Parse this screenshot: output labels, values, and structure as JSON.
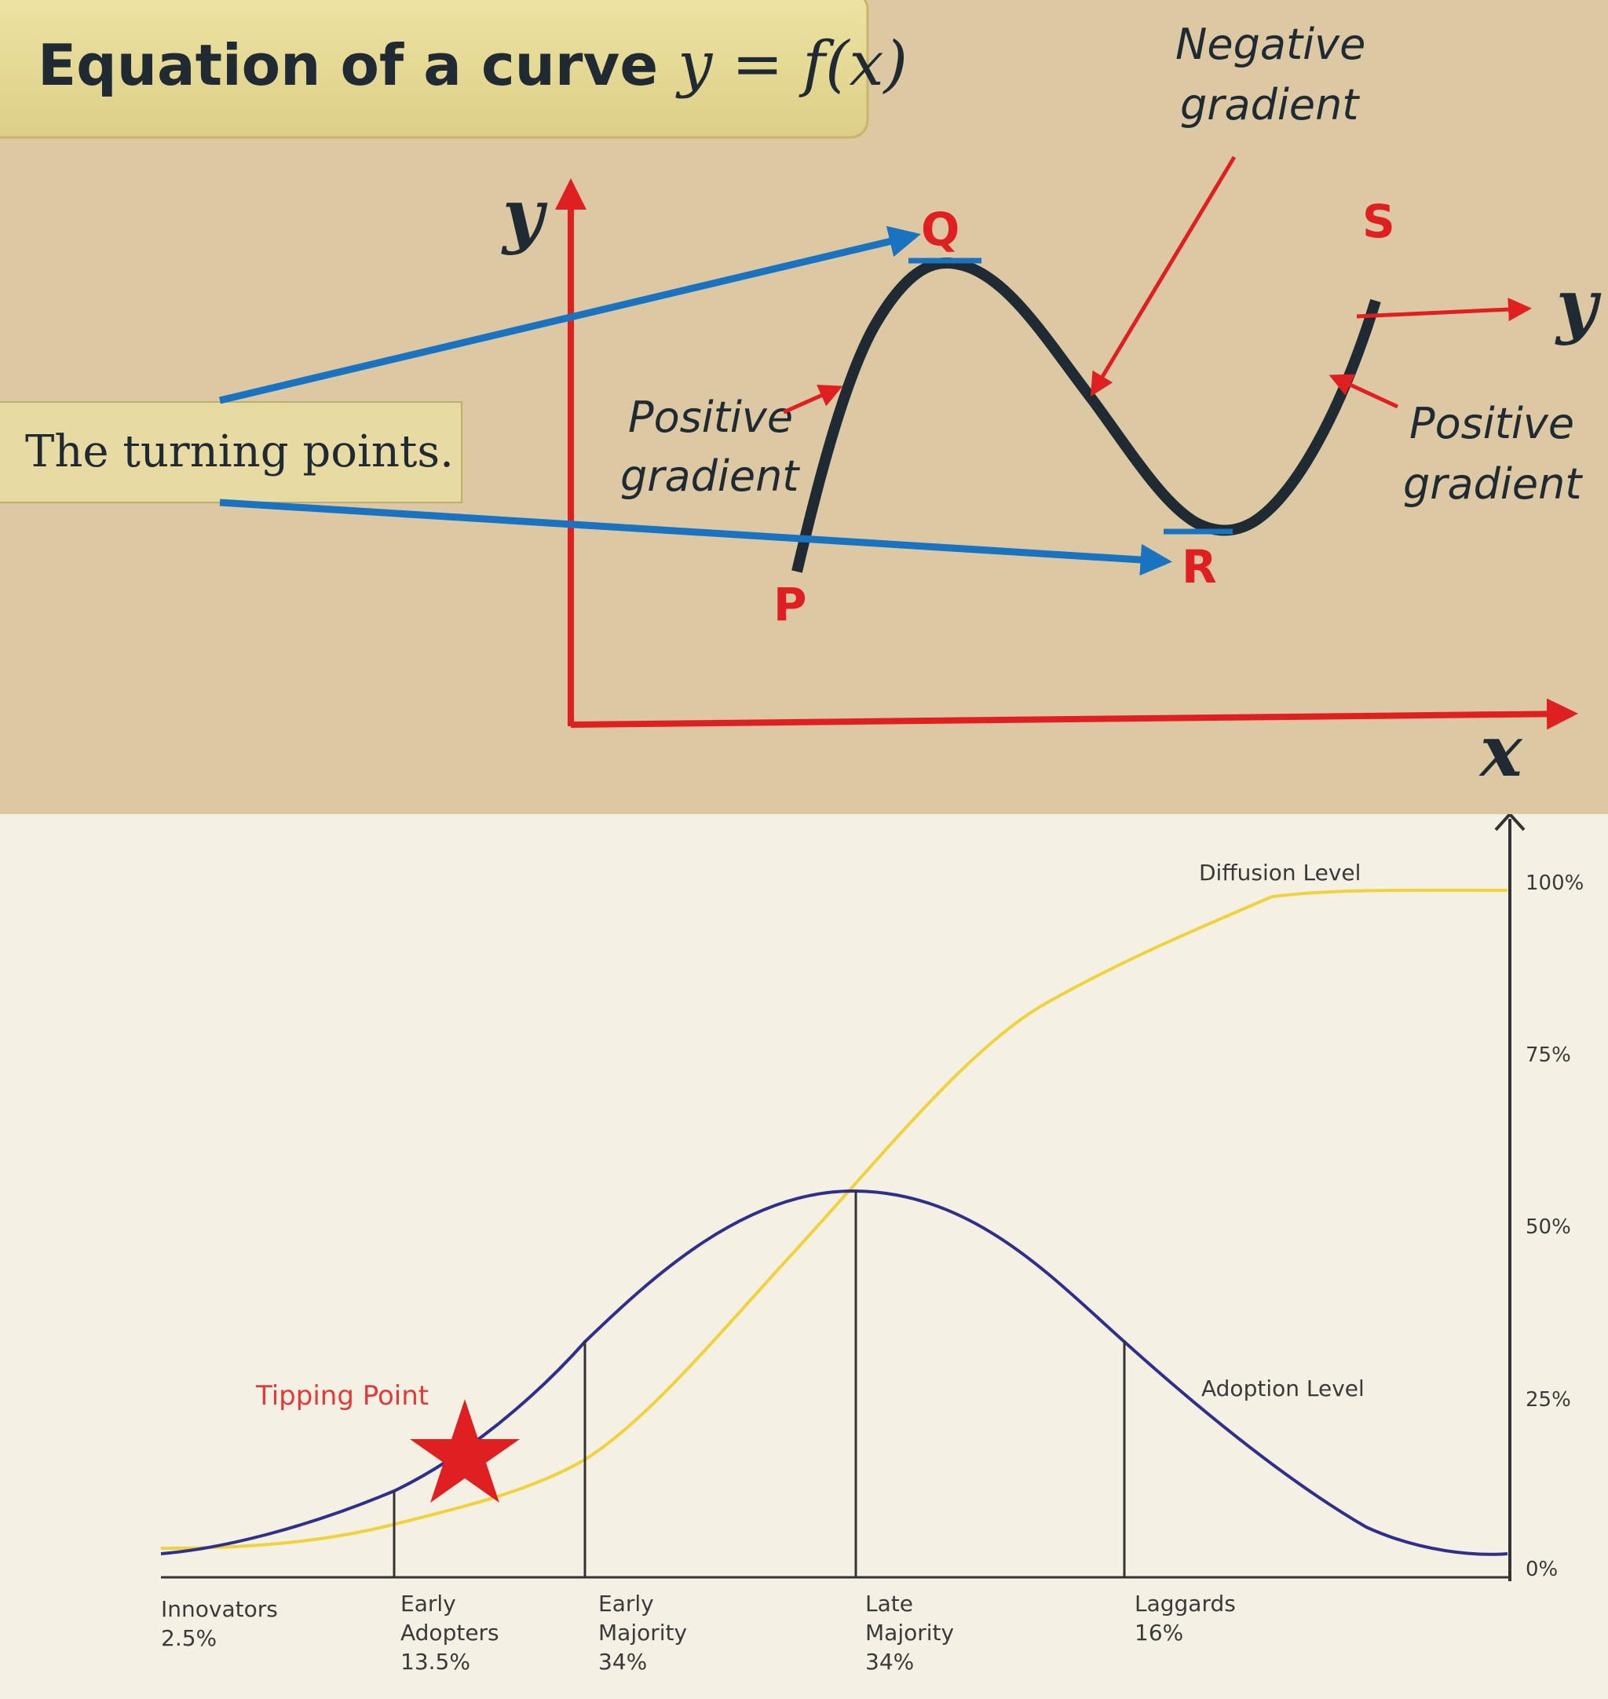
{
  "top": {
    "title_prefix": "Equation of a curve ",
    "title_math": "y = f(x)",
    "turning_points_label": "The turning points.",
    "y_axis_label": "y",
    "x_axis_label": "x",
    "right_y_label": "y",
    "points": {
      "p": "P",
      "q": "Q",
      "r": "R",
      "s": "S"
    },
    "positive_gradient_left": [
      "Positive",
      "gradient"
    ],
    "negative_gradient": [
      "Negative",
      "gradient"
    ],
    "positive_gradient_right": [
      "Positive",
      "gradient"
    ]
  },
  "bottom": {
    "tipping_point": "Tipping Point",
    "diffusion_level": "Diffusion Level",
    "adoption_level": "Adoption Level",
    "y_ticks": [
      "100%",
      "75%",
      "50%",
      "25%",
      "0%"
    ],
    "categories": [
      {
        "lines": [
          "Innovators",
          "2.5%"
        ]
      },
      {
        "lines": [
          "Early",
          "Adopters",
          "13.5%"
        ]
      },
      {
        "lines": [
          "Early",
          "Majority",
          "34%"
        ]
      },
      {
        "lines": [
          "Late",
          "Majority",
          "34%"
        ]
      },
      {
        "lines": [
          "Laggards",
          "16%"
        ]
      }
    ]
  },
  "colors": {
    "red": "#e02020",
    "blue": "#1a73c0",
    "curve": "#1f2a33",
    "adoption": "#2f2f8c",
    "diffusion": "#f0d23c"
  }
}
